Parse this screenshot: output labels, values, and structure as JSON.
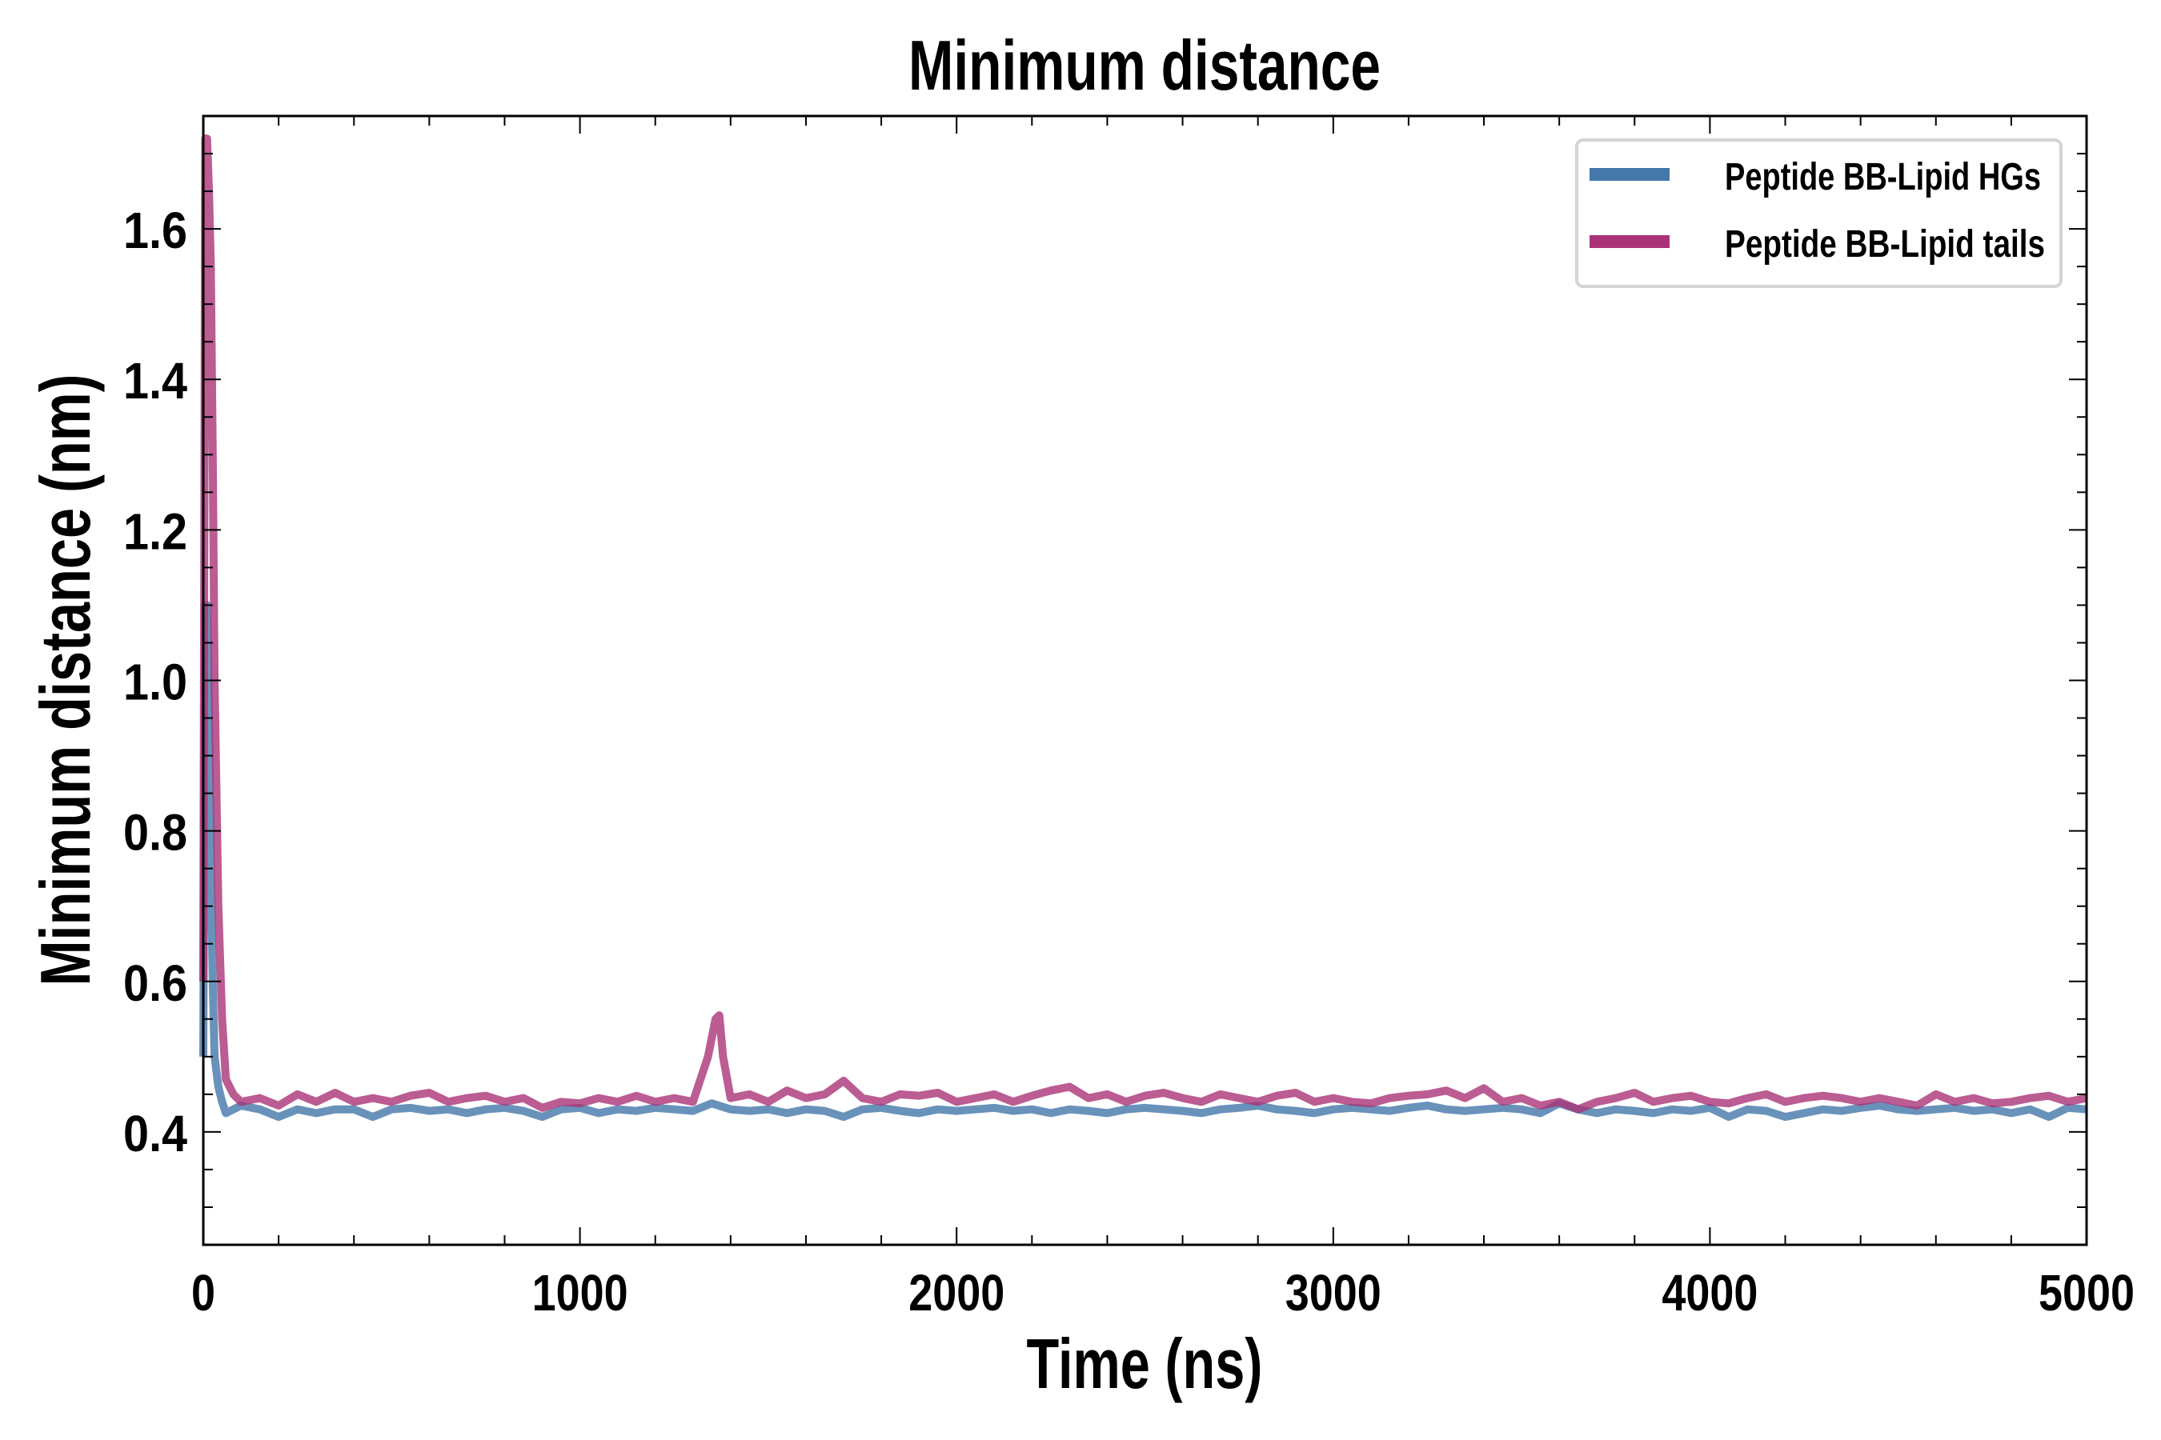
{
  "chart_data": {
    "type": "line",
    "title": "Minimum distance",
    "xlabel": "Time (ns)",
    "ylabel": "Minimum distance (nm)",
    "xlim": [
      0,
      5000
    ],
    "ylim": [
      0.25,
      1.75
    ],
    "xticks": [
      0,
      1000,
      2000,
      3000,
      4000,
      5000
    ],
    "xtick_labels": [
      "0",
      "1000",
      "2000",
      "3000",
      "4000",
      "5000"
    ],
    "yticks": [
      0.4,
      0.6,
      0.8,
      1.0,
      1.2,
      1.4,
      1.6
    ],
    "ytick_labels": [
      "0.4",
      "0.6",
      "0.8",
      "1.0",
      "1.2",
      "1.4",
      "1.6"
    ],
    "grid": false,
    "legend_position": "top-right",
    "series": [
      {
        "name": "Peptide BB-Lipid HGs",
        "color": "#4477aa",
        "x": [
          0,
          5,
          10,
          15,
          20,
          25,
          30,
          40,
          50,
          60,
          80,
          100,
          150,
          200,
          250,
          300,
          350,
          400,
          450,
          500,
          550,
          600,
          650,
          700,
          750,
          800,
          850,
          900,
          950,
          1000,
          1050,
          1100,
          1150,
          1200,
          1250,
          1300,
          1350,
          1400,
          1450,
          1500,
          1550,
          1600,
          1650,
          1700,
          1750,
          1800,
          1850,
          1900,
          1950,
          2000,
          2050,
          2100,
          2150,
          2200,
          2250,
          2300,
          2350,
          2400,
          2450,
          2500,
          2550,
          2600,
          2650,
          2700,
          2750,
          2800,
          2850,
          2900,
          2950,
          3000,
          3050,
          3100,
          3150,
          3200,
          3250,
          3300,
          3350,
          3400,
          3450,
          3500,
          3550,
          3600,
          3650,
          3700,
          3750,
          3800,
          3850,
          3900,
          3950,
          4000,
          4050,
          4100,
          4150,
          4200,
          4250,
          4300,
          4350,
          4400,
          4450,
          4500,
          4550,
          4600,
          4650,
          4700,
          4750,
          4800,
          4850,
          4900,
          4950,
          5000
        ],
        "y": [
          0.5,
          1.1,
          1.1,
          0.95,
          0.75,
          0.6,
          0.5,
          0.46,
          0.44,
          0.425,
          0.43,
          0.435,
          0.43,
          0.42,
          0.43,
          0.425,
          0.43,
          0.43,
          0.42,
          0.43,
          0.432,
          0.428,
          0.43,
          0.425,
          0.43,
          0.432,
          0.428,
          0.42,
          0.43,
          0.432,
          0.425,
          0.43,
          0.428,
          0.432,
          0.43,
          0.428,
          0.438,
          0.43,
          0.428,
          0.43,
          0.425,
          0.43,
          0.428,
          0.42,
          0.43,
          0.432,
          0.428,
          0.425,
          0.43,
          0.428,
          0.43,
          0.432,
          0.428,
          0.43,
          0.425,
          0.43,
          0.428,
          0.425,
          0.43,
          0.432,
          0.43,
          0.428,
          0.425,
          0.43,
          0.432,
          0.435,
          0.43,
          0.428,
          0.425,
          0.43,
          0.432,
          0.43,
          0.428,
          0.432,
          0.435,
          0.43,
          0.428,
          0.43,
          0.432,
          0.43,
          0.425,
          0.438,
          0.43,
          0.425,
          0.43,
          0.428,
          0.425,
          0.43,
          0.428,
          0.432,
          0.42,
          0.43,
          0.428,
          0.42,
          0.425,
          0.43,
          0.428,
          0.432,
          0.435,
          0.43,
          0.428,
          0.43,
          0.432,
          0.428,
          0.43,
          0.425,
          0.43,
          0.42,
          0.432,
          0.43
        ]
      },
      {
        "name": "Peptide BB-Lipid tails",
        "color": "#aa3377",
        "x": [
          0,
          5,
          10,
          15,
          20,
          25,
          30,
          40,
          50,
          60,
          80,
          100,
          150,
          200,
          250,
          300,
          350,
          400,
          450,
          500,
          550,
          600,
          650,
          700,
          750,
          800,
          850,
          900,
          950,
          1000,
          1050,
          1100,
          1150,
          1200,
          1250,
          1300,
          1340,
          1360,
          1370,
          1380,
          1400,
          1450,
          1500,
          1550,
          1600,
          1650,
          1700,
          1750,
          1800,
          1850,
          1900,
          1950,
          2000,
          2050,
          2100,
          2150,
          2200,
          2250,
          2300,
          2350,
          2400,
          2450,
          2500,
          2550,
          2600,
          2650,
          2700,
          2750,
          2800,
          2850,
          2900,
          2950,
          3000,
          3050,
          3100,
          3150,
          3200,
          3250,
          3300,
          3350,
          3400,
          3450,
          3500,
          3550,
          3600,
          3650,
          3700,
          3750,
          3800,
          3850,
          3900,
          3950,
          4000,
          4050,
          4100,
          4150,
          4200,
          4250,
          4300,
          4350,
          4400,
          4450,
          4500,
          4550,
          4600,
          4650,
          4700,
          4750,
          4800,
          4850,
          4900,
          4950,
          5000
        ],
        "y": [
          0.6,
          1.72,
          1.72,
          1.65,
          1.55,
          1.3,
          1.0,
          0.7,
          0.55,
          0.47,
          0.45,
          0.44,
          0.445,
          0.435,
          0.45,
          0.44,
          0.452,
          0.44,
          0.445,
          0.44,
          0.448,
          0.452,
          0.44,
          0.445,
          0.448,
          0.44,
          0.445,
          0.432,
          0.44,
          0.438,
          0.445,
          0.44,
          0.448,
          0.44,
          0.445,
          0.44,
          0.5,
          0.55,
          0.555,
          0.5,
          0.445,
          0.45,
          0.44,
          0.455,
          0.445,
          0.45,
          0.468,
          0.445,
          0.44,
          0.45,
          0.448,
          0.452,
          0.44,
          0.445,
          0.45,
          0.44,
          0.448,
          0.455,
          0.46,
          0.445,
          0.45,
          0.44,
          0.448,
          0.452,
          0.445,
          0.44,
          0.45,
          0.445,
          0.44,
          0.448,
          0.452,
          0.44,
          0.445,
          0.44,
          0.438,
          0.445,
          0.448,
          0.45,
          0.455,
          0.445,
          0.458,
          0.44,
          0.445,
          0.435,
          0.44,
          0.43,
          0.44,
          0.445,
          0.452,
          0.44,
          0.445,
          0.448,
          0.44,
          0.438,
          0.445,
          0.45,
          0.44,
          0.445,
          0.448,
          0.445,
          0.44,
          0.445,
          0.44,
          0.435,
          0.45,
          0.44,
          0.445,
          0.438,
          0.44,
          0.445,
          0.448,
          0.44,
          0.445
        ]
      }
    ]
  }
}
